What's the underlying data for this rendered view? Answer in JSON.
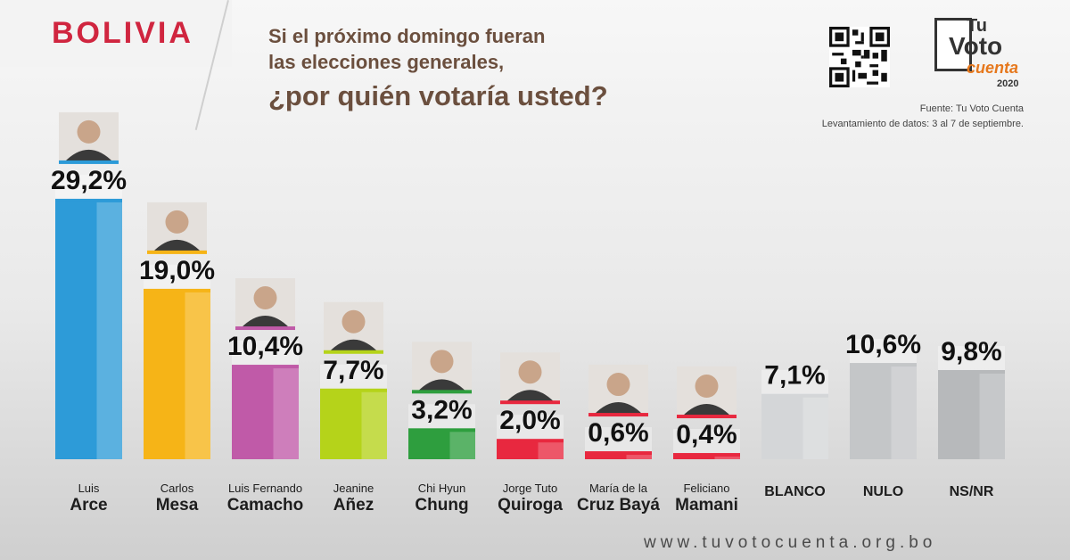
{
  "header": {
    "country": "BOLIVIA",
    "question_line1": "Si el próximo domingo fueran",
    "question_line2": "las elecciones generales,",
    "question_main": "¿por quién votaría usted?"
  },
  "logo": {
    "tu": "Tu",
    "voto": "Voto",
    "cuenta": "cuenta",
    "year": "2020"
  },
  "source": {
    "line1": "Fuente: Tu Voto Cuenta",
    "line2": "Levantamiento de datos: 3 al 7 de septiembre."
  },
  "footer": {
    "url": "www.tuvotocuenta.org.bo"
  },
  "colors": {
    "arce": "#2d9bd8",
    "mesa": "#f6b417",
    "camacho": "#c05aa8",
    "anez": "#b5d31a",
    "chung": "#2e9e3e",
    "quiroga": "#e8283f",
    "baya": "#e8283f",
    "mamani": "#e8283f",
    "blanco": "#d4d6d8",
    "nulo": "#c4c6c8",
    "nsnr": "#b7b9bb"
  },
  "chart_data": {
    "type": "bar",
    "categories": [
      "Luis Arce",
      "Carlos Mesa",
      "Luis Fernando Camacho",
      "Jeanine Añez",
      "Chi Hyun Chung",
      "Jorge Tuto Quiroga",
      "María de la Cruz Bayá",
      "Feliciano Mamani",
      "BLANCO",
      "NULO",
      "NS/NR"
    ],
    "values": [
      29.2,
      19.0,
      10.4,
      7.7,
      3.2,
      2.0,
      0.6,
      0.4,
      7.1,
      10.6,
      9.8
    ],
    "value_labels": [
      "29,2%",
      "19,0%",
      "10,4%",
      "7,7%",
      "3,2%",
      "2,0%",
      "0,6%",
      "0,4%",
      "7,1%",
      "10,6%",
      "9,8%"
    ],
    "title": "¿por quién votaría usted?",
    "unit": "%"
  },
  "candidates": [
    {
      "first": "Luis",
      "last": "Arce"
    },
    {
      "first": "Carlos",
      "last": "Mesa"
    },
    {
      "first": "Luis Fernando",
      "last": "Camacho"
    },
    {
      "first": "Jeanine",
      "last": "Añez"
    },
    {
      "first": "Chi Hyun",
      "last": "Chung"
    },
    {
      "first": "Jorge Tuto",
      "last": "Quiroga"
    },
    {
      "first": "María de la",
      "last": "Cruz Bayá"
    },
    {
      "first": "Feliciano",
      "last": "Mamani"
    },
    {
      "first": "",
      "last": "BLANCO"
    },
    {
      "first": "",
      "last": "NULO"
    },
    {
      "first": "",
      "last": "NS/NR"
    }
  ]
}
